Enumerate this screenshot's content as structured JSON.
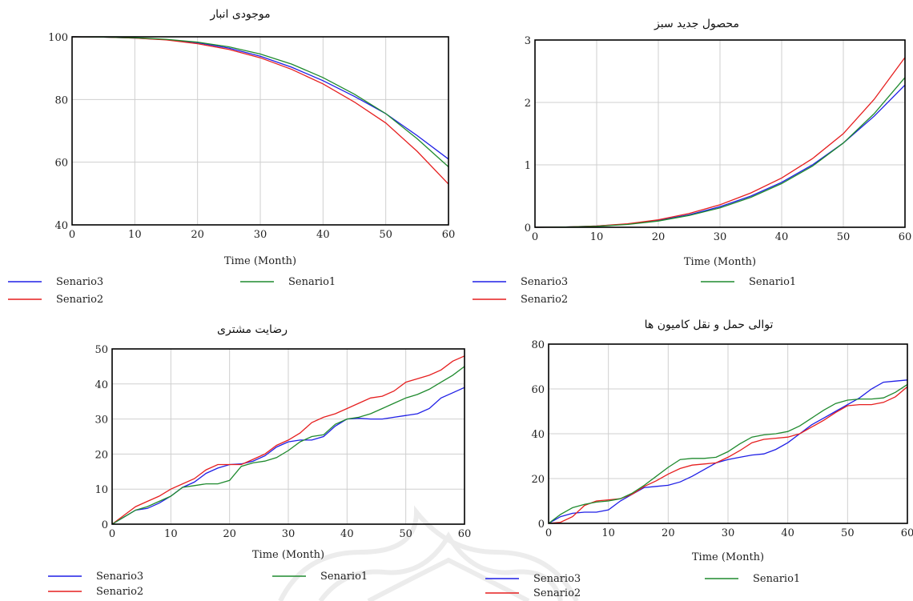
{
  "chart_data": [
    {
      "type": "line",
      "title": "موجودی انبار",
      "xlabel": "Time (Month)",
      "ylabel": "",
      "xlim": [
        0,
        60
      ],
      "ylim": [
        40,
        100
      ],
      "xticks": [
        "0",
        "10",
        "20",
        "30",
        "40",
        "50",
        "60"
      ],
      "yticks": [
        "40",
        "60",
        "80",
        "100"
      ],
      "grid": true,
      "legend": "bottom",
      "series": [
        {
          "name": "Senario3",
          "color": "#1f1fe6",
          "x": [
            0,
            5,
            10,
            15,
            20,
            25,
            30,
            35,
            40,
            45,
            50,
            55,
            60
          ],
          "y": [
            100,
            99.9,
            99.6,
            99.1,
            98.1,
            96.4,
            93.8,
            90.3,
            86.0,
            81.0,
            75.5,
            68.5,
            61.0
          ]
        },
        {
          "name": "Senario2",
          "color": "#e61f1f",
          "x": [
            0,
            5,
            10,
            15,
            20,
            25,
            30,
            35,
            40,
            45,
            50,
            55,
            60
          ],
          "y": [
            100,
            99.9,
            99.6,
            99.0,
            97.8,
            96.0,
            93.3,
            89.6,
            85.0,
            79.2,
            72.5,
            63.5,
            53.0
          ]
        },
        {
          "name": "Senario1",
          "color": "#1f8a2e",
          "x": [
            0,
            5,
            10,
            15,
            20,
            25,
            30,
            35,
            40,
            45,
            50,
            55,
            60
          ],
          "y": [
            100,
            99.9,
            99.7,
            99.2,
            98.3,
            96.8,
            94.5,
            91.3,
            87.0,
            81.7,
            75.5,
            67.5,
            58.5
          ]
        }
      ]
    },
    {
      "type": "line",
      "title": "محصول جدید سبز",
      "xlabel": "Time (Month)",
      "ylabel": "",
      "xlim": [
        0,
        60
      ],
      "ylim": [
        0,
        3
      ],
      "xticks": [
        "0",
        "10",
        "20",
        "30",
        "40",
        "50",
        "60"
      ],
      "yticks": [
        "0",
        "1",
        "2",
        "3"
      ],
      "grid": true,
      "legend": "bottom",
      "series": [
        {
          "name": "Senario3",
          "color": "#1f1fe6",
          "x": [
            0,
            5,
            10,
            15,
            20,
            25,
            30,
            35,
            40,
            45,
            50,
            55,
            60
          ],
          "y": [
            0,
            0.005,
            0.02,
            0.05,
            0.11,
            0.2,
            0.33,
            0.5,
            0.72,
            1.0,
            1.35,
            1.78,
            2.28
          ]
        },
        {
          "name": "Senario2",
          "color": "#e61f1f",
          "x": [
            0,
            5,
            10,
            15,
            20,
            25,
            30,
            35,
            40,
            45,
            50,
            55,
            60
          ],
          "y": [
            0,
            0.005,
            0.02,
            0.055,
            0.12,
            0.22,
            0.36,
            0.55,
            0.79,
            1.1,
            1.5,
            2.05,
            2.72
          ]
        },
        {
          "name": "Senario1",
          "color": "#1f8a2e",
          "x": [
            0,
            5,
            10,
            15,
            20,
            25,
            30,
            35,
            40,
            45,
            50,
            55,
            60
          ],
          "y": [
            0,
            0.004,
            0.016,
            0.045,
            0.1,
            0.19,
            0.31,
            0.48,
            0.7,
            0.98,
            1.35,
            1.82,
            2.4
          ]
        }
      ]
    },
    {
      "type": "line",
      "title": "رضایت مشتری",
      "xlabel": "Time (Month)",
      "ylabel": "",
      "xlim": [
        0,
        60
      ],
      "ylim": [
        0,
        50
      ],
      "xticks": [
        "0",
        "10",
        "20",
        "30",
        "40",
        "50",
        "60"
      ],
      "yticks": [
        "0",
        "10",
        "20",
        "30",
        "40",
        "50"
      ],
      "grid": true,
      "legend": "bottom",
      "series": [
        {
          "name": "Senario3",
          "color": "#1f1fe6",
          "x": [
            0,
            2,
            4,
            6,
            8,
            10,
            12,
            14,
            16,
            18,
            20,
            22,
            24,
            26,
            28,
            30,
            32,
            34,
            36,
            38,
            40,
            42,
            44,
            46,
            48,
            50,
            52,
            54,
            56,
            58,
            60
          ],
          "y": [
            0,
            2,
            4,
            4.5,
            6,
            8,
            10.5,
            12,
            14.5,
            16,
            17,
            17.2,
            18,
            19.5,
            22,
            23.5,
            24,
            24,
            25,
            28,
            30,
            30.2,
            30,
            30,
            30.5,
            31,
            31.5,
            33,
            36,
            37.5,
            39
          ]
        },
        {
          "name": "Senario2",
          "color": "#e61f1f",
          "x": [
            0,
            2,
            4,
            6,
            8,
            10,
            12,
            14,
            16,
            18,
            20,
            22,
            24,
            26,
            28,
            30,
            32,
            34,
            36,
            38,
            40,
            42,
            44,
            46,
            48,
            50,
            52,
            54,
            56,
            58,
            60
          ],
          "y": [
            0,
            2.5,
            5,
            6.5,
            8,
            10,
            11.5,
            13,
            15.5,
            17,
            17,
            17,
            18.5,
            20,
            22.5,
            24,
            26,
            29,
            30.5,
            31.5,
            33,
            34.5,
            36,
            36.5,
            38,
            40.5,
            41.5,
            42.5,
            44,
            46.5,
            48
          ]
        },
        {
          "name": "Senario1",
          "color": "#1f8a2e",
          "x": [
            0,
            2,
            4,
            6,
            8,
            10,
            12,
            14,
            16,
            18,
            20,
            22,
            24,
            26,
            28,
            30,
            32,
            34,
            36,
            38,
            40,
            42,
            44,
            46,
            48,
            50,
            52,
            54,
            56,
            58,
            60
          ],
          "y": [
            0,
            2,
            4,
            5,
            6.5,
            8,
            10.5,
            11,
            11.5,
            11.5,
            12.5,
            16.5,
            17.5,
            18,
            19,
            21,
            23.5,
            25,
            25.5,
            28.5,
            30,
            30.5,
            31.5,
            33,
            34.5,
            36,
            37,
            38.5,
            40.5,
            42.5,
            45
          ]
        }
      ]
    },
    {
      "type": "line",
      "title": "توالی حمل و نقل کامیون ها",
      "xlabel": "Time (Month)",
      "ylabel": "",
      "xlim": [
        0,
        60
      ],
      "ylim": [
        0,
        80
      ],
      "xticks": [
        "0",
        "10",
        "20",
        "30",
        "40",
        "50",
        "60"
      ],
      "yticks": [
        "0",
        "20",
        "40",
        "60",
        "80"
      ],
      "grid": true,
      "legend": "bottom",
      "series": [
        {
          "name": "Senario3",
          "color": "#1f1fe6",
          "x": [
            0,
            2,
            4,
            6,
            8,
            10,
            12,
            14,
            16,
            18,
            20,
            22,
            24,
            26,
            28,
            30,
            32,
            34,
            36,
            38,
            40,
            42,
            44,
            46,
            48,
            50,
            52,
            54,
            56,
            58,
            60
          ],
          "y": [
            0,
            3,
            4.5,
            5,
            5,
            6,
            10,
            13,
            16,
            16.5,
            17,
            18.5,
            21,
            24,
            27,
            28.5,
            29.5,
            30.5,
            31,
            33,
            36,
            40,
            44,
            47,
            50,
            53,
            56,
            60,
            63,
            63.5,
            64
          ]
        },
        {
          "name": "Senario2",
          "color": "#e61f1f",
          "x": [
            0,
            2,
            4,
            6,
            8,
            10,
            12,
            14,
            16,
            18,
            20,
            22,
            24,
            26,
            28,
            30,
            32,
            34,
            36,
            38,
            40,
            42,
            44,
            46,
            48,
            50,
            52,
            54,
            56,
            58,
            60
          ],
          "y": [
            0,
            0.5,
            3,
            8,
            10,
            10.5,
            11,
            13,
            16.5,
            19,
            22,
            24.5,
            26,
            26.5,
            27,
            29.5,
            32.5,
            36,
            37.5,
            38,
            38.5,
            40,
            43,
            46,
            49.5,
            52.5,
            53,
            53,
            54,
            56.5,
            61
          ]
        },
        {
          "name": "Senario1",
          "color": "#1f8a2e",
          "x": [
            0,
            2,
            4,
            6,
            8,
            10,
            12,
            14,
            16,
            18,
            20,
            22,
            24,
            26,
            28,
            30,
            32,
            34,
            36,
            38,
            40,
            42,
            44,
            46,
            48,
            50,
            52,
            54,
            56,
            58,
            60
          ],
          "y": [
            0,
            4,
            7,
            8.5,
            9.5,
            10,
            11,
            13.5,
            17,
            21,
            25,
            28.5,
            29,
            29,
            29.5,
            32,
            35.5,
            38.5,
            39.5,
            40,
            41,
            43.5,
            47,
            50.5,
            53.5,
            55,
            55.5,
            55.5,
            56,
            58.5,
            62
          ]
        }
      ]
    }
  ]
}
